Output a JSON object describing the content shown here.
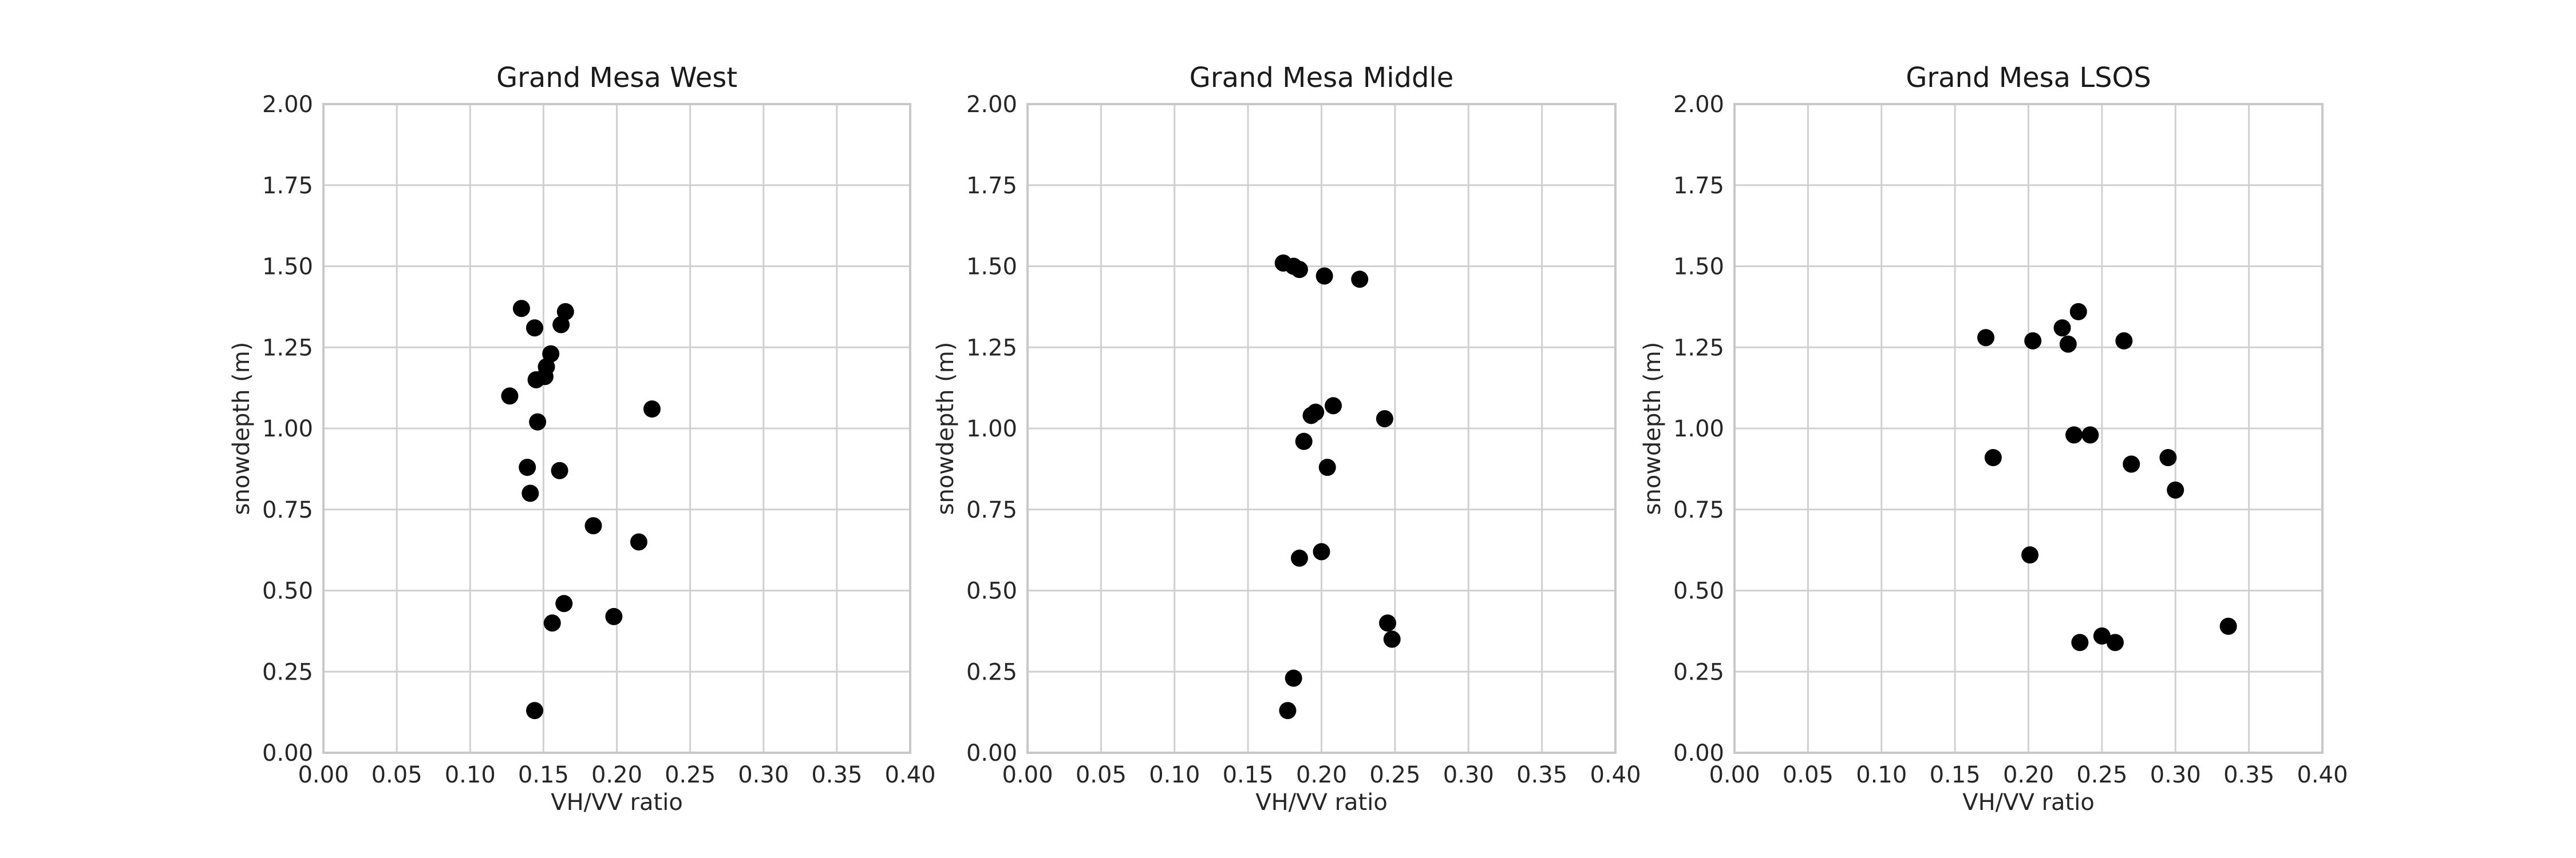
{
  "chart_data": [
    {
      "type": "scatter",
      "title": "Grand Mesa West",
      "xlabel": "VH/VV ratio",
      "ylabel": "snowdepth (m)",
      "xlim": [
        0.0,
        0.4
      ],
      "ylim": [
        0.0,
        2.0
      ],
      "xticks": [
        "0.00",
        "0.05",
        "0.10",
        "0.15",
        "0.20",
        "0.25",
        "0.30",
        "0.35",
        "0.40"
      ],
      "yticks": [
        "0.00",
        "0.25",
        "0.50",
        "0.75",
        "1.00",
        "1.25",
        "1.50",
        "1.75",
        "2.00"
      ],
      "grid": true,
      "color": "#000000",
      "points": [
        {
          "x": 0.135,
          "y": 1.37
        },
        {
          "x": 0.165,
          "y": 1.36
        },
        {
          "x": 0.162,
          "y": 1.32
        },
        {
          "x": 0.144,
          "y": 1.31
        },
        {
          "x": 0.155,
          "y": 1.23
        },
        {
          "x": 0.152,
          "y": 1.19
        },
        {
          "x": 0.151,
          "y": 1.16
        },
        {
          "x": 0.145,
          "y": 1.15
        },
        {
          "x": 0.127,
          "y": 1.1
        },
        {
          "x": 0.224,
          "y": 1.06
        },
        {
          "x": 0.146,
          "y": 1.02
        },
        {
          "x": 0.139,
          "y": 0.88
        },
        {
          "x": 0.161,
          "y": 0.87
        },
        {
          "x": 0.141,
          "y": 0.8
        },
        {
          "x": 0.184,
          "y": 0.7
        },
        {
          "x": 0.215,
          "y": 0.65
        },
        {
          "x": 0.164,
          "y": 0.46
        },
        {
          "x": 0.198,
          "y": 0.42
        },
        {
          "x": 0.156,
          "y": 0.4
        },
        {
          "x": 0.144,
          "y": 0.13
        }
      ]
    },
    {
      "type": "scatter",
      "title": "Grand Mesa Middle",
      "xlabel": "VH/VV ratio",
      "ylabel": "snowdepth (m)",
      "xlim": [
        0.0,
        0.4
      ],
      "ylim": [
        0.0,
        2.0
      ],
      "xticks": [
        "0.00",
        "0.05",
        "0.10",
        "0.15",
        "0.20",
        "0.25",
        "0.30",
        "0.35",
        "0.40"
      ],
      "yticks": [
        "0.00",
        "0.25",
        "0.50",
        "0.75",
        "1.00",
        "1.25",
        "1.50",
        "1.75",
        "2.00"
      ],
      "grid": true,
      "color": "#000000",
      "points": [
        {
          "x": 0.174,
          "y": 1.51
        },
        {
          "x": 0.181,
          "y": 1.5
        },
        {
          "x": 0.185,
          "y": 1.49
        },
        {
          "x": 0.202,
          "y": 1.47
        },
        {
          "x": 0.226,
          "y": 1.46
        },
        {
          "x": 0.208,
          "y": 1.07
        },
        {
          "x": 0.196,
          "y": 1.05
        },
        {
          "x": 0.193,
          "y": 1.04
        },
        {
          "x": 0.243,
          "y": 1.03
        },
        {
          "x": 0.188,
          "y": 0.96
        },
        {
          "x": 0.204,
          "y": 0.88
        },
        {
          "x": 0.2,
          "y": 0.62
        },
        {
          "x": 0.185,
          "y": 0.6
        },
        {
          "x": 0.245,
          "y": 0.4
        },
        {
          "x": 0.248,
          "y": 0.35
        },
        {
          "x": 0.181,
          "y": 0.23
        },
        {
          "x": 0.177,
          "y": 0.13
        }
      ]
    },
    {
      "type": "scatter",
      "title": "Grand Mesa LSOS",
      "xlabel": "VH/VV ratio",
      "ylabel": "snowdepth (m)",
      "xlim": [
        0.0,
        0.4
      ],
      "ylim": [
        0.0,
        2.0
      ],
      "xticks": [
        "0.00",
        "0.05",
        "0.10",
        "0.15",
        "0.20",
        "0.25",
        "0.30",
        "0.35",
        "0.40"
      ],
      "yticks": [
        "0.00",
        "0.25",
        "0.50",
        "0.75",
        "1.00",
        "1.25",
        "1.50",
        "1.75",
        "2.00"
      ],
      "grid": true,
      "color": "#000000",
      "points": [
        {
          "x": 0.234,
          "y": 1.36
        },
        {
          "x": 0.223,
          "y": 1.31
        },
        {
          "x": 0.171,
          "y": 1.28
        },
        {
          "x": 0.203,
          "y": 1.27
        },
        {
          "x": 0.265,
          "y": 1.27
        },
        {
          "x": 0.227,
          "y": 1.26
        },
        {
          "x": 0.231,
          "y": 0.98
        },
        {
          "x": 0.242,
          "y": 0.98
        },
        {
          "x": 0.176,
          "y": 0.91
        },
        {
          "x": 0.295,
          "y": 0.91
        },
        {
          "x": 0.27,
          "y": 0.89
        },
        {
          "x": 0.3,
          "y": 0.81
        },
        {
          "x": 0.201,
          "y": 0.61
        },
        {
          "x": 0.336,
          "y": 0.39
        },
        {
          "x": 0.25,
          "y": 0.36
        },
        {
          "x": 0.235,
          "y": 0.34
        },
        {
          "x": 0.259,
          "y": 0.34
        }
      ]
    }
  ]
}
